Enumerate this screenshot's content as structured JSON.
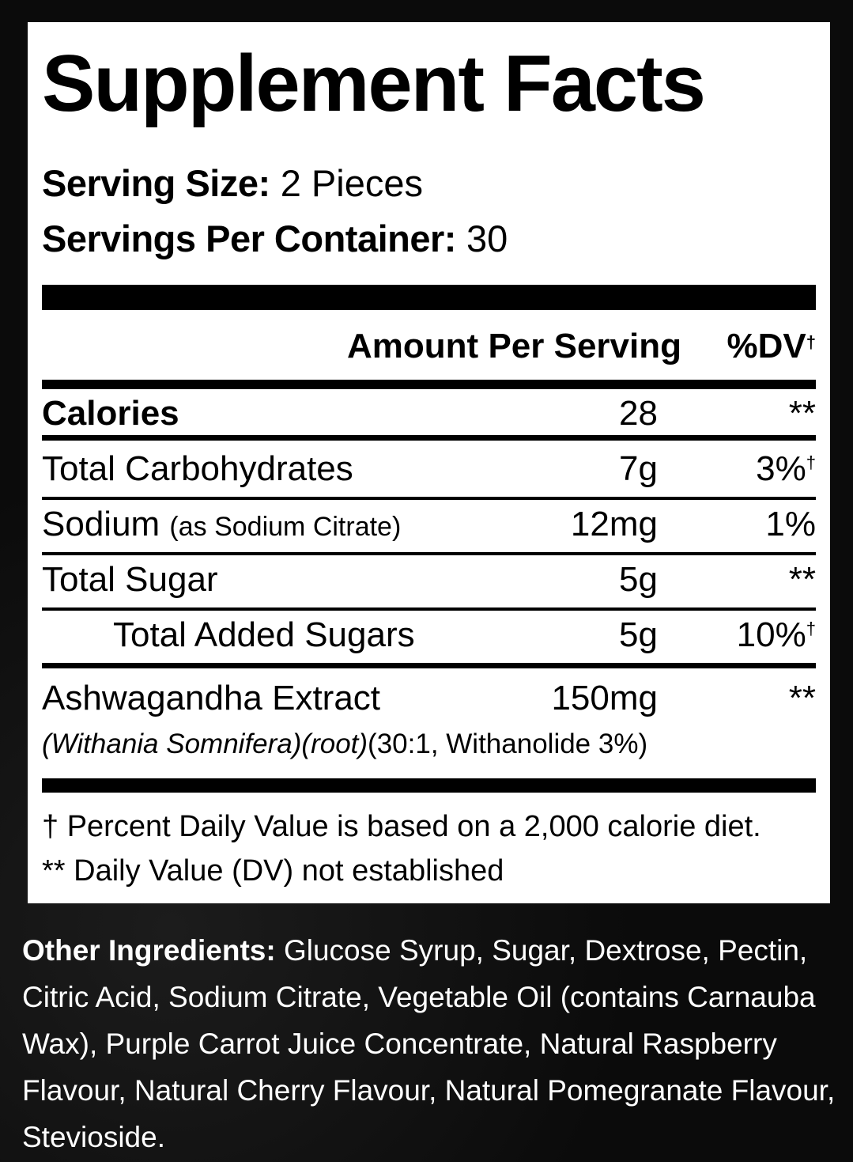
{
  "title": "Supplement Facts",
  "serving_size": {
    "label": "Serving Size:",
    "value": "2 Pieces"
  },
  "servings_per_container": {
    "label": "Servings Per Container:",
    "value": "30"
  },
  "header": {
    "amount": "Amount Per Serving",
    "dv": "%DV",
    "dv_mark": "†"
  },
  "rows": [
    {
      "name": "Calories",
      "amount": "28",
      "dv": "**"
    },
    {
      "name": "Total Carbohydrates",
      "amount": "7g",
      "dv": "3%",
      "dv_mark": "†"
    },
    {
      "name": "Sodium",
      "note": "(as Sodium Citrate)",
      "amount": "12mg",
      "dv": "1%"
    },
    {
      "name": "Total Sugar",
      "amount": "5g",
      "dv": "**"
    },
    {
      "name": "Total Added Sugars",
      "amount": "5g",
      "dv": "10%",
      "dv_mark": "†"
    },
    {
      "name": "Ashwagandha Extract",
      "amount": "150mg",
      "dv": "**",
      "sub_italic": "(Withania Somnifera)(root)",
      "sub": "(30:1, Withanolide 3%)"
    }
  ],
  "footnotes": [
    "† Percent Daily Value is based on a 2,000 calorie diet.",
    "** Daily Value (DV) not established"
  ],
  "other_ingredients": {
    "label": "Other Ingredients:",
    "text": "Glucose Syrup, Sugar, Dextrose, Pectin, Citric Acid, Sodium Citrate, Vegetable Oil (contains Carnauba Wax), Purple Carrot Juice Concentrate, Natural Raspberry Flavour, Natural Cherry Flavour, Natural Pomegranate Flavour, Stevioside."
  }
}
